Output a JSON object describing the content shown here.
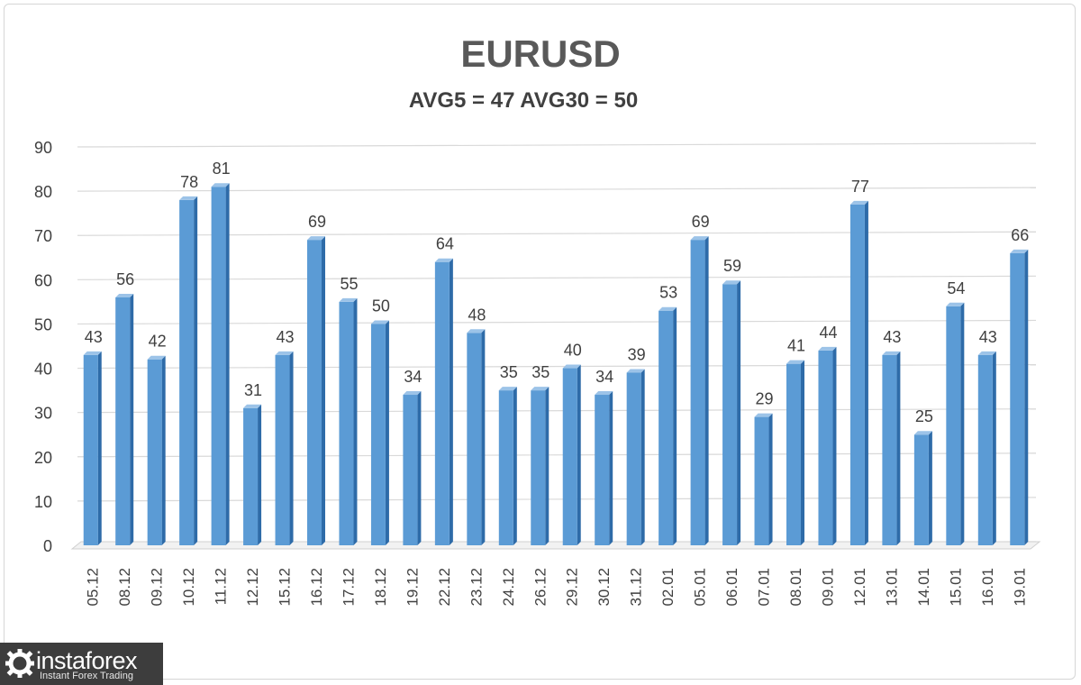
{
  "chart_data": {
    "type": "bar",
    "title": "EURUSD",
    "subtitle": "AVG5 = 47 AVG30 = 50",
    "categories": [
      "05.12",
      "08.12",
      "09.12",
      "10.12",
      "11.12",
      "12.12",
      "15.12",
      "16.12",
      "17.12",
      "18.12",
      "19.12",
      "22.12",
      "23.12",
      "24.12",
      "26.12",
      "29.12",
      "30.12",
      "31.12",
      "02.01",
      "05.01",
      "06.01",
      "07.01",
      "08.01",
      "09.01",
      "12.01",
      "13.01",
      "14.01",
      "15.01",
      "16.01",
      "19.01"
    ],
    "values": [
      43,
      56,
      42,
      78,
      81,
      31,
      43,
      69,
      55,
      50,
      34,
      64,
      48,
      35,
      35,
      40,
      34,
      39,
      53,
      69,
      59,
      29,
      41,
      44,
      77,
      43,
      25,
      54,
      43,
      66
    ],
    "yticks": [
      0,
      10,
      20,
      30,
      40,
      50,
      60,
      70,
      80,
      90
    ],
    "ylim": [
      0,
      90
    ],
    "grid": true,
    "bar_color": "#5b9bd5",
    "bar_color_dark": "#2e6ba8",
    "bar_color_light": "#9cc3e8"
  },
  "logo": {
    "name": "instaforex",
    "tagline": "Instant Forex Trading"
  }
}
